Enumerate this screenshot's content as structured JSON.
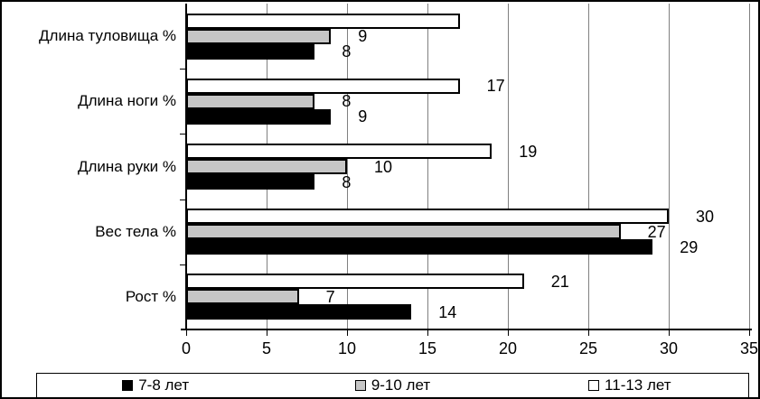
{
  "figure": {
    "background": "#ffffff",
    "border_color": "#000000"
  },
  "chart_data": {
    "type": "bar",
    "orientation": "horizontal",
    "title": "",
    "categories": [
      "Длина туловища %",
      "Длина ноги %",
      "Длина руки %",
      "Вес тела %",
      "Рост %"
    ],
    "series": [
      {
        "name": "7-8 лет",
        "color": "#000000",
        "values": [
          8,
          9,
          8,
          29,
          14
        ],
        "point_labels": [
          "8",
          "9",
          "8",
          "29",
          "14"
        ]
      },
      {
        "name": "9-10 лет",
        "color": "#c6c6c6",
        "values": [
          9,
          8,
          10,
          27,
          7
        ],
        "point_labels": [
          "9",
          "8",
          "10",
          "27",
          "7"
        ]
      },
      {
        "name": "11-13 лет",
        "color": "#ffffff",
        "values": [
          17,
          17,
          19,
          30,
          21
        ],
        "point_labels": [
          "",
          "17",
          "19",
          "30",
          "21"
        ]
      }
    ],
    "bar_order_top_to_bottom": [
      "11-13 лет",
      "9-10 лет",
      "7-8 лет"
    ],
    "xlim": [
      0,
      35
    ],
    "x_ticks": [
      "0",
      "5",
      "10",
      "15",
      "20",
      "25",
      "30",
      "35"
    ],
    "grid": true,
    "legend_position": "bottom",
    "colors": {
      "gridline": "#808080",
      "axis": "#000000",
      "bar_border": "#000000",
      "plot_background": "#ffffff"
    }
  }
}
